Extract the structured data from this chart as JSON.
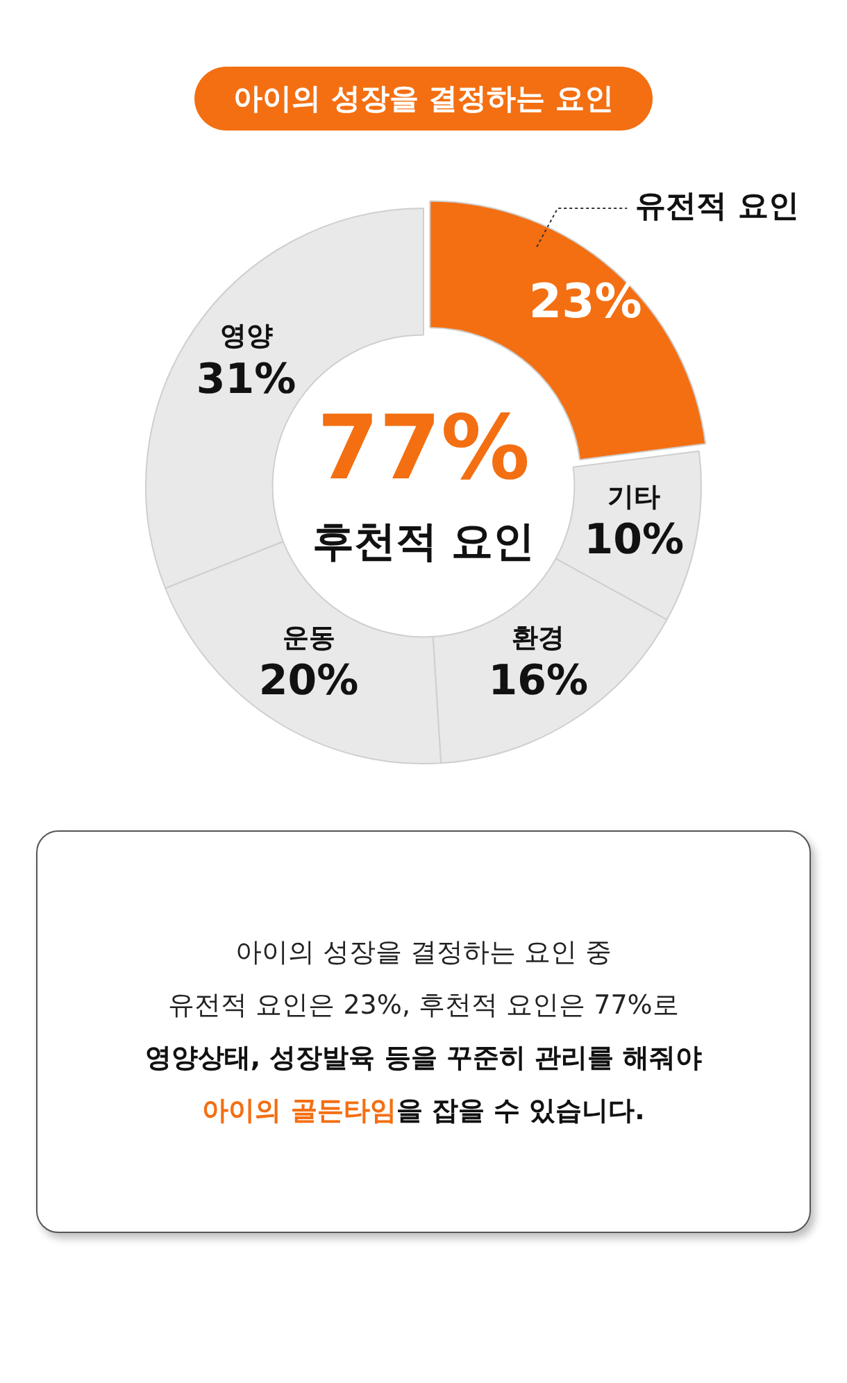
{
  "chart_data": {
    "type": "donut",
    "title": "아이의 성장을 결정하는 요인",
    "categories": [
      "유전적 요인",
      "기타",
      "환경",
      "운동",
      "영양"
    ],
    "values": [
      23,
      10,
      16,
      20,
      31
    ],
    "value_labels": [
      "23%",
      "10%",
      "16%",
      "20%",
      "31%"
    ],
    "colors": [
      "#f36f12",
      "#e9e9e9",
      "#e9e9e9",
      "#e9e9e9",
      "#e9e9e9"
    ],
    "legend": false,
    "annotations": [
      "77%",
      "후천적 요인",
      "아이의 성장을 결정하는 요인 중",
      "유전적 요인은 23%, 후천적 요인은 77%로",
      "영양상태, 성장발육 등을 꾸준히 관리를 해줘야",
      "아이의 골든타임",
      "을 잡을 수 있습니다."
    ]
  }
}
